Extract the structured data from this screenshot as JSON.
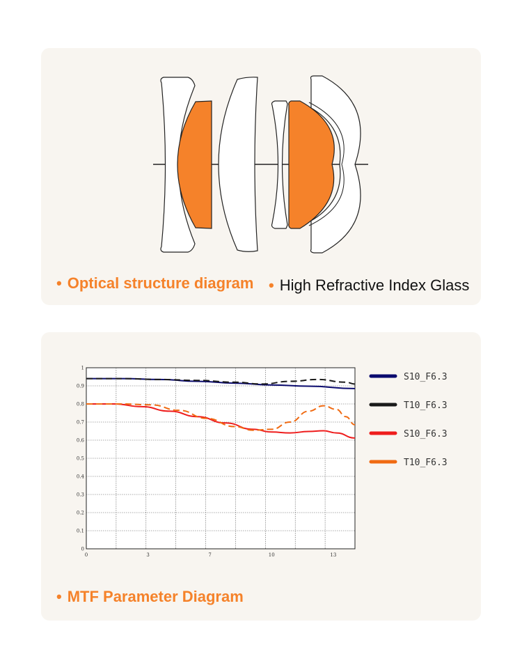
{
  "optical": {
    "caption": "Optical structure diagram",
    "subcaption": "High Refractive Index Glass",
    "bullet": "•",
    "colors": {
      "highlight_glass": "#f5822a"
    }
  },
  "mtf": {
    "caption": "MTF Parameter Diagram",
    "bullet": "•"
  },
  "chart_data": {
    "type": "line",
    "title": "",
    "xlabel": "",
    "ylabel": "",
    "xlim": [
      0,
      14.5
    ],
    "ylim": [
      0,
      1
    ],
    "grid": true,
    "legend_position": "right",
    "x_ticks": [
      {
        "value": 0,
        "label": "0"
      },
      {
        "value": 3.33,
        "label": "3"
      },
      {
        "value": 6.67,
        "label": "7"
      },
      {
        "value": 10,
        "label": "10"
      },
      {
        "value": 13.33,
        "label": "13"
      }
    ],
    "y_ticks": [
      {
        "value": 0,
        "label": "0"
      },
      {
        "value": 0.1,
        "label": "0.1"
      },
      {
        "value": 0.2,
        "label": "0.2"
      },
      {
        "value": 0.3,
        "label": "0.3"
      },
      {
        "value": 0.4,
        "label": "0.4"
      },
      {
        "value": 0.5,
        "label": "0.5"
      },
      {
        "value": 0.6,
        "label": "0.6"
      },
      {
        "value": 0.7,
        "label": "0.7"
      },
      {
        "value": 0.8,
        "label": "0.8"
      },
      {
        "value": 0.9,
        "label": "0.9"
      },
      {
        "value": 1,
        "label": "1"
      }
    ],
    "series": [
      {
        "name": "S10_F6.3",
        "color": "#0a0a6e",
        "dashed": false,
        "x": [
          0,
          2,
          4,
          6,
          8,
          10,
          12,
          14.5
        ],
        "y": [
          0.94,
          0.94,
          0.935,
          0.925,
          0.915,
          0.905,
          0.898,
          0.885
        ]
      },
      {
        "name": "T10_F6.3",
        "color": "#1a1a1a",
        "dashed": true,
        "x": [
          0,
          2,
          4,
          6,
          8,
          9.5,
          11,
          12.5,
          14,
          14.5
        ],
        "y": [
          0.94,
          0.94,
          0.935,
          0.93,
          0.92,
          0.91,
          0.925,
          0.935,
          0.92,
          0.91
        ]
      },
      {
        "name": "S10_F6.3",
        "color": "#ee1c1c",
        "dashed": false,
        "x": [
          0,
          1.5,
          3,
          4.5,
          6,
          7.5,
          9,
          10,
          11,
          12,
          12.8,
          13.5,
          14.5
        ],
        "y": [
          0.8,
          0.8,
          0.785,
          0.76,
          0.73,
          0.695,
          0.66,
          0.645,
          0.64,
          0.648,
          0.652,
          0.64,
          0.612
        ]
      },
      {
        "name": "T10_F6.3",
        "color": "#f06a12",
        "dashed": true,
        "x": [
          0,
          2,
          3.5,
          5,
          6.5,
          8,
          9,
          10,
          11,
          12,
          12.8,
          13.5,
          14,
          14.5
        ],
        "y": [
          0.8,
          0.8,
          0.795,
          0.765,
          0.72,
          0.675,
          0.655,
          0.66,
          0.7,
          0.76,
          0.79,
          0.77,
          0.73,
          0.685
        ]
      }
    ]
  }
}
